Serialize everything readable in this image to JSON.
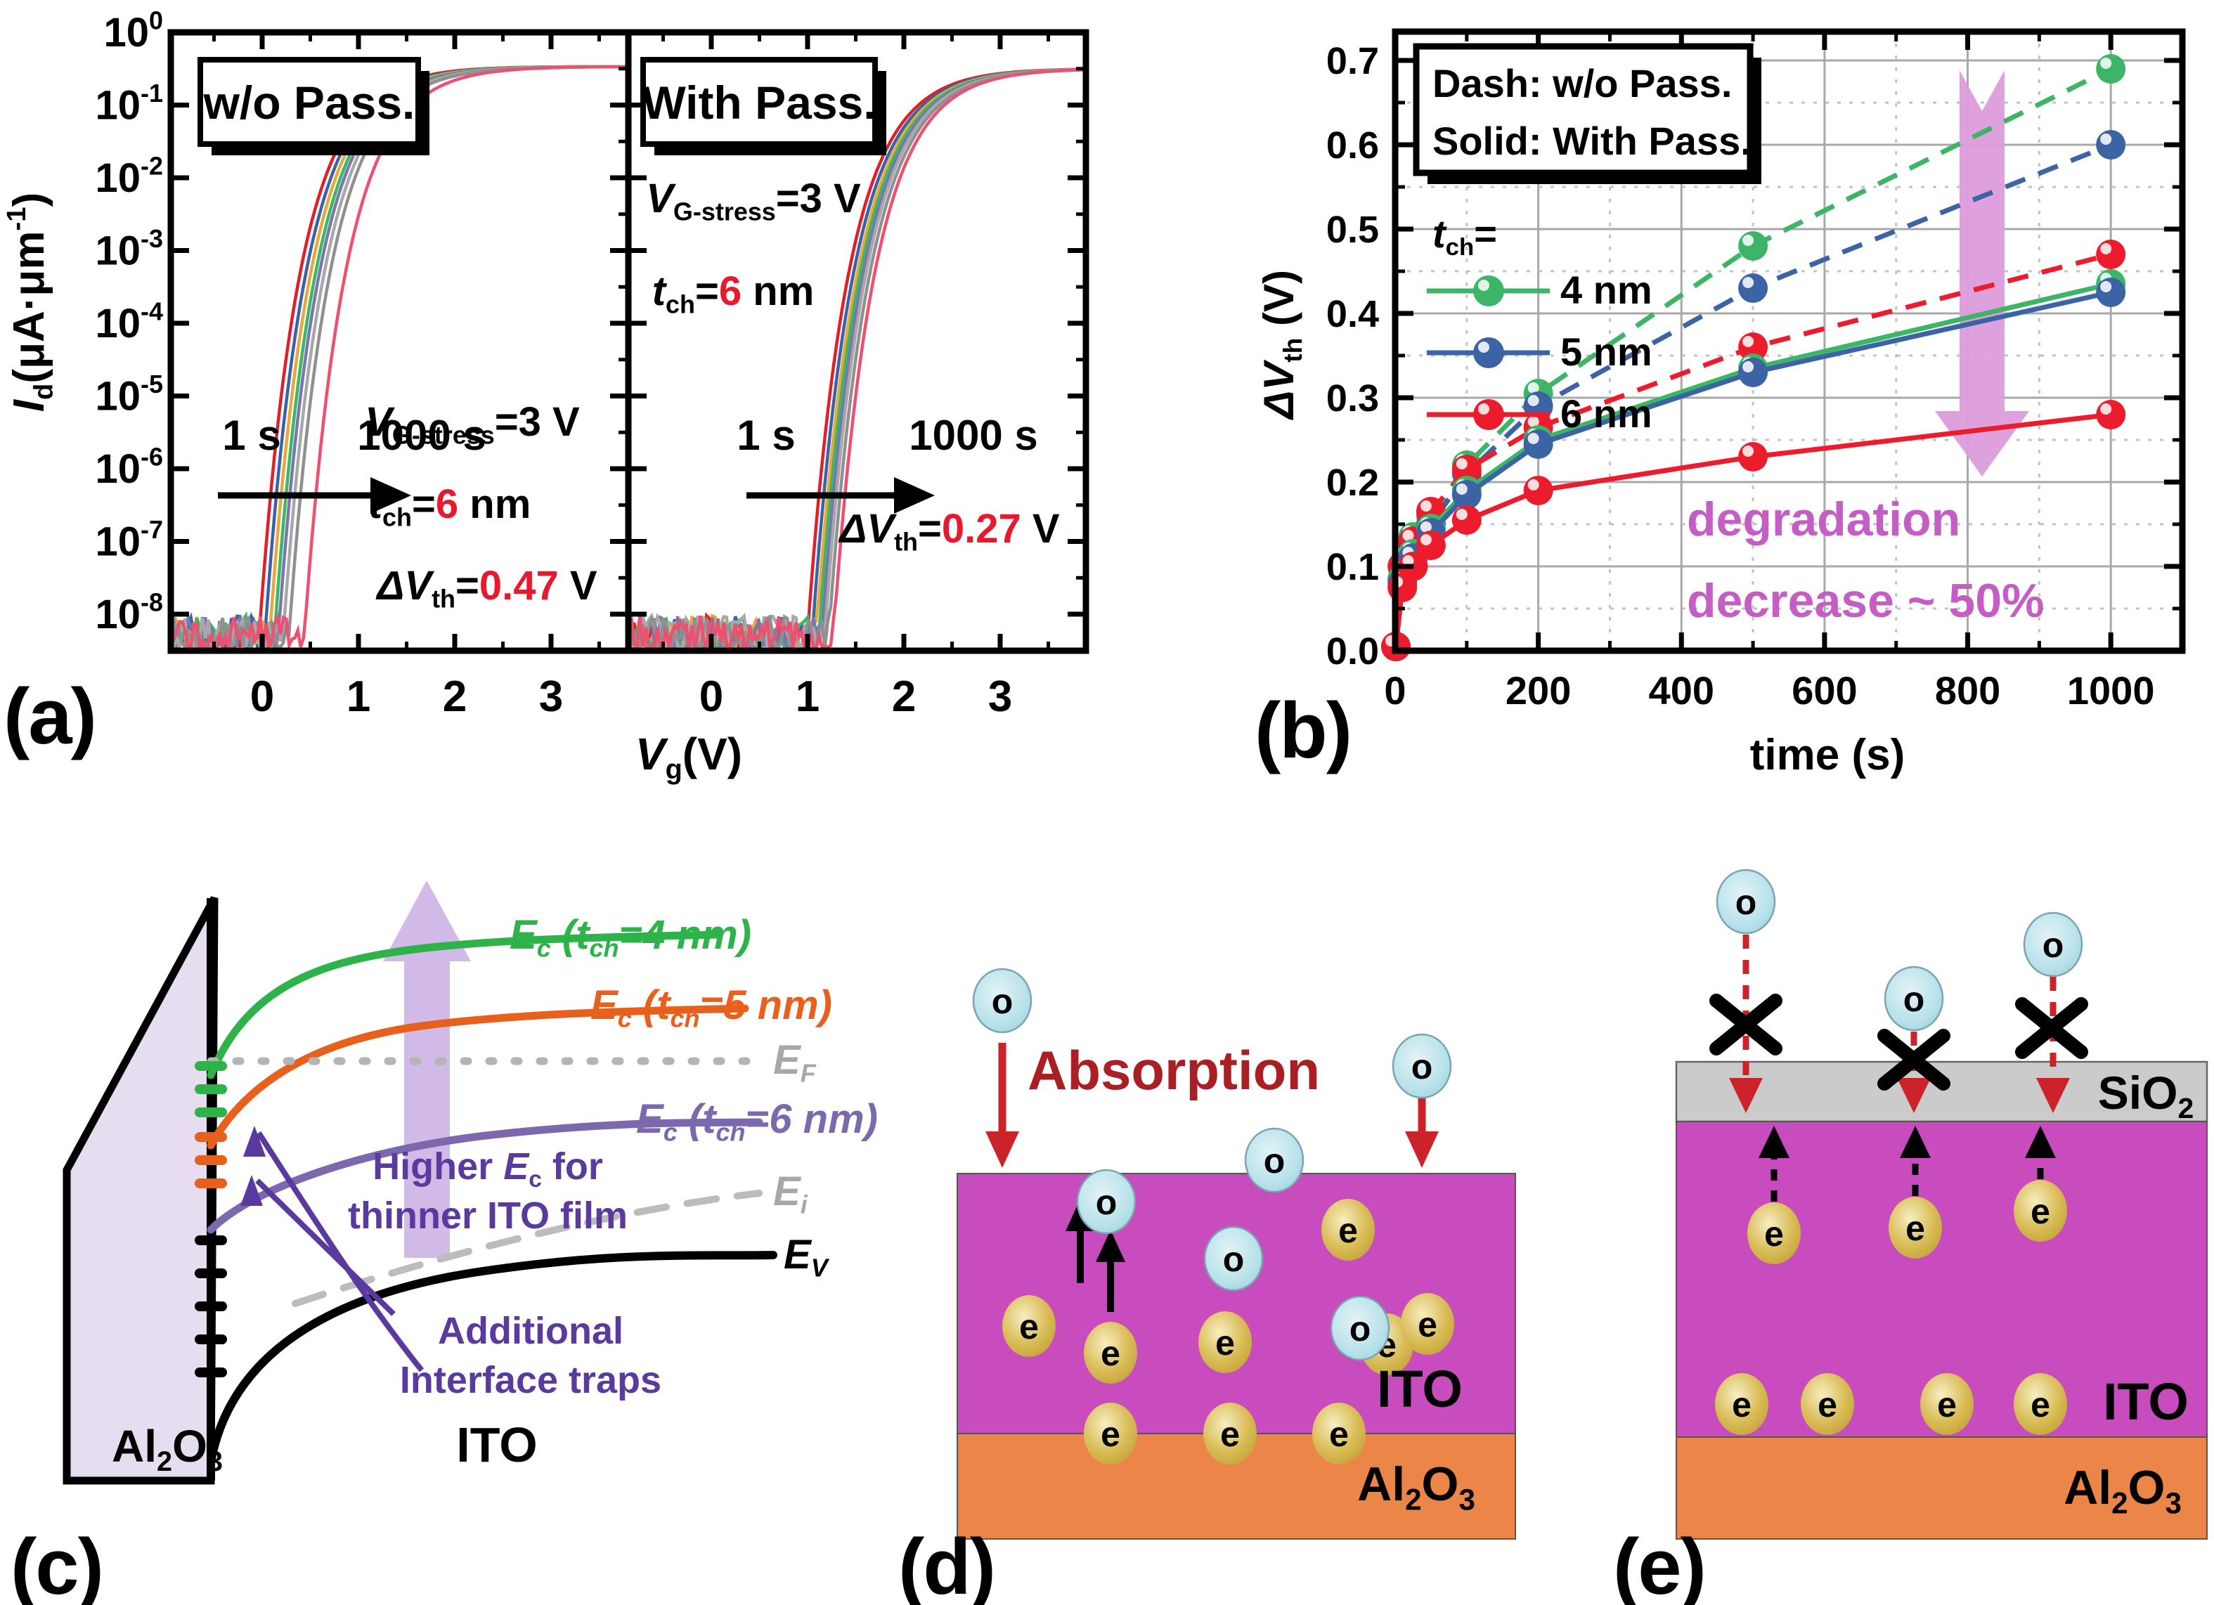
{
  "panel_letters": {
    "a": "(a)",
    "b": "(b)",
    "c": "(c)",
    "d": "(d)",
    "e": "(e)"
  },
  "accent_red": "#e8192c",
  "chart_data": [
    {
      "id": "a_left",
      "type": "line",
      "title": "w/o Pass.",
      "xlabel": "Vg (V)",
      "ylabel": "Id (uA*um^-1)",
      "x_ticks": [
        0,
        1,
        2,
        3
      ],
      "y_tick_exponents": [
        0,
        -1,
        -2,
        -3,
        -4,
        -5,
        -6,
        -7,
        -8
      ],
      "xlim": [
        -0.95,
        3.8
      ],
      "ylog_top": -0.47,
      "ylog_floor": -8.45,
      "stress_times_shown": [
        "1 s",
        "1000 s"
      ],
      "vth_per_sweep_V": [
        -0.04,
        0.02,
        0.07,
        0.12,
        0.16,
        0.21,
        0.27,
        0.43
      ],
      "delta_vth_V": 0.47
    },
    {
      "id": "a_right",
      "type": "line",
      "title": "With Pass.",
      "xlabel": "Vg (V)",
      "x_ticks": [
        0,
        1,
        2,
        3
      ],
      "xlim": [
        -0.86,
        3.89
      ],
      "ylog_top": -0.5,
      "ylog_floor": -8.45,
      "stress_times_shown": [
        "1 s",
        "1000 s"
      ],
      "vth_per_sweep_V": [
        0.99,
        1.04,
        1.08,
        1.11,
        1.14,
        1.17,
        1.21,
        1.26
      ],
      "delta_vth_V": 0.27
    },
    {
      "id": "b",
      "type": "line",
      "xlabel": "time (s)",
      "ylabel": "dVth (V)",
      "xlim": [
        0,
        1100
      ],
      "ylim": [
        0,
        0.73
      ],
      "x_ticks": [
        0,
        200,
        400,
        600,
        800,
        1000
      ],
      "y_ticks": [
        0.0,
        0.1,
        0.2,
        0.3,
        0.4,
        0.5,
        0.6,
        0.7
      ],
      "grid": true,
      "x": [
        1,
        10,
        25,
        50,
        100,
        200,
        500,
        1000
      ],
      "series": [
        {
          "name": "4 nm w/o Pass.",
          "style": "dash",
          "color": "#3cb567",
          "values": [
            0.005,
            0.1,
            0.135,
            0.16,
            0.22,
            0.305,
            0.48,
            0.69
          ]
        },
        {
          "name": "5 nm w/o Pass.",
          "style": "dash",
          "color": "#3c64a5",
          "values": [
            0.005,
            0.085,
            0.125,
            0.15,
            0.21,
            0.29,
            0.43,
            0.6
          ]
        },
        {
          "name": "6 nm w/o Pass.",
          "style": "dash",
          "color": "#ec1c2d",
          "values": [
            0.005,
            0.1,
            0.13,
            0.165,
            0.215,
            0.265,
            0.36,
            0.47
          ]
        },
        {
          "name": "4 nm With Pass.",
          "style": "solid",
          "color": "#3cb567",
          "values": [
            0.005,
            0.085,
            0.115,
            0.145,
            0.19,
            0.25,
            0.335,
            0.435
          ]
        },
        {
          "name": "5 nm With Pass.",
          "style": "solid",
          "color": "#3c64a5",
          "values": [
            0.005,
            0.08,
            0.11,
            0.14,
            0.185,
            0.245,
            0.33,
            0.425
          ]
        },
        {
          "name": "6 nm With Pass.",
          "style": "solid",
          "color": "#ec1c2d",
          "values": [
            0.005,
            0.075,
            0.1,
            0.125,
            0.155,
            0.19,
            0.23,
            0.28
          ]
        }
      ]
    }
  ],
  "panel_a": {
    "ylabel_rich": [
      {
        "t": "I",
        "i": 1
      },
      {
        "t": "d",
        "sub": 1
      },
      {
        "t": "(μA·μm"
      },
      {
        "t": "-1",
        "sup": 1
      },
      {
        "t": ")"
      }
    ],
    "xlabel_rich": [
      {
        "t": "V",
        "i": 1
      },
      {
        "t": "g",
        "sub": 1
      },
      {
        "t": "(V)"
      }
    ],
    "time_start": "1 s",
    "time_end": "1000 s",
    "sweep_colors": [
      "#e02028",
      "#3a62a8",
      "#e8a83c",
      "#3cb860",
      "#7878b0",
      "#a8a8a8",
      "#909090",
      "#ef5070"
    ],
    "left": {
      "box_label": "w/o Pass.",
      "ann1": [
        {
          "t": "V",
          "i": 1
        },
        {
          "t": "G-stress",
          "sub": 1
        },
        {
          "t": "=3 V"
        }
      ],
      "ann2": [
        {
          "t": "t",
          "i": 1
        },
        {
          "t": "ch",
          "sub": 1
        },
        {
          "t": "="
        },
        {
          "t": "6",
          "c": "#e8192c"
        },
        {
          "t": " nm"
        }
      ],
      "ann3": [
        {
          "t": "ΔV",
          "i": 1
        },
        {
          "t": "th",
          "sub": 1
        },
        {
          "t": "="
        },
        {
          "t": "0.47",
          "c": "#e8192c"
        },
        {
          "t": " V"
        }
      ]
    },
    "right": {
      "box_label": "With Pass.",
      "ann1": [
        {
          "t": "V",
          "i": 1
        },
        {
          "t": "G-stress",
          "sub": 1
        },
        {
          "t": "=3 V"
        }
      ],
      "ann2": [
        {
          "t": "t",
          "i": 1
        },
        {
          "t": "ch",
          "sub": 1
        },
        {
          "t": "="
        },
        {
          "t": "6",
          "c": "#e8192c"
        },
        {
          "t": " nm"
        }
      ],
      "ann3": [
        {
          "t": "ΔV",
          "i": 1
        },
        {
          "t": "th",
          "sub": 1
        },
        {
          "t": "="
        },
        {
          "t": "0.27",
          "c": "#e8192c"
        },
        {
          "t": " V"
        }
      ]
    }
  },
  "panel_b": {
    "legend_box_lines": [
      "Dash: w/o Pass.",
      "Solid: With Pass."
    ],
    "tch_rich": [
      {
        "t": "t",
        "i": 1
      },
      {
        "t": "ch",
        "sub": 1
      },
      {
        "t": "="
      }
    ],
    "legend_entries": [
      {
        "label": "4 nm",
        "color": "#3cb567"
      },
      {
        "label": "5 nm",
        "color": "#3c64a5"
      },
      {
        "label": "6 nm",
        "color": "#ec1c2d"
      }
    ],
    "ylabel_rich": [
      {
        "t": "ΔV",
        "i": 1
      },
      {
        "t": "th",
        "sub": 1
      },
      {
        "t": " (V)"
      }
    ],
    "xlabel": "time (s)",
    "annotation_lines": [
      "degradation",
      "decrease ~ 50%"
    ],
    "annotation_color": "#c45ec4",
    "arrow_color": "#dc9cdc"
  },
  "panel_c": {
    "ec4_rich": [
      {
        "t": "E",
        "i": 1
      },
      {
        "t": "c",
        "sub": 1,
        "i": 1
      },
      {
        "t": " (",
        "i": 1
      },
      {
        "t": "t",
        "i": 1
      },
      {
        "t": "ch",
        "sub": 1,
        "i": 1
      },
      {
        "t": "=4 nm)",
        "i": 1
      }
    ],
    "ec5_rich": [
      {
        "t": "E",
        "i": 1
      },
      {
        "t": "c",
        "sub": 1,
        "i": 1
      },
      {
        "t": " (",
        "i": 1
      },
      {
        "t": "t",
        "i": 1
      },
      {
        "t": "ch",
        "sub": 1,
        "i": 1
      },
      {
        "t": "=5 nm)",
        "i": 1
      }
    ],
    "ec6_rich": [
      {
        "t": "E",
        "i": 1
      },
      {
        "t": "c",
        "sub": 1,
        "i": 1
      },
      {
        "t": " (",
        "i": 1
      },
      {
        "t": "t",
        "i": 1
      },
      {
        "t": "ch",
        "sub": 1,
        "i": 1
      },
      {
        "t": "=6 nm)",
        "i": 1
      }
    ],
    "ef_rich": [
      {
        "t": "E",
        "i": 1
      },
      {
        "t": "F",
        "sub": 1,
        "i": 1
      }
    ],
    "ei_rich": [
      {
        "t": "E",
        "i": 1
      },
      {
        "t": "i",
        "sub": 1,
        "i": 1
      }
    ],
    "ev_rich": [
      {
        "t": "E",
        "i": 1
      },
      {
        "t": "V",
        "sub": 1,
        "i": 1
      }
    ],
    "higher_line1": [
      {
        "t": "Higher "
      },
      {
        "t": "E",
        "i": 1
      },
      {
        "t": "c",
        "sub": 1
      },
      {
        "t": " for"
      }
    ],
    "higher_line2": "thinner ITO film",
    "additional": "Additional",
    "traps": "Interface traps",
    "al2o3_rich": [
      {
        "t": "Al"
      },
      {
        "t": "2",
        "sub": 1
      },
      {
        "t": "O"
      },
      {
        "t": "3",
        "sub": 1
      }
    ],
    "ito_label": "ITO",
    "colors": {
      "ec4": "#2db34a",
      "ec5": "#e8601c",
      "ec6": "#7b68ae",
      "ef": "#b4b4b4",
      "ei": "#bcbcbc",
      "ev": "#000000",
      "purple_text": "#5a3a9e",
      "lavender": "#e6def0",
      "arrow": "#c9ade4"
    }
  },
  "panel_d": {
    "absorption_label": "Absorption",
    "absorption_color": "#aa1f23",
    "oxygen_symbol": "o",
    "electron_symbol": "e",
    "ito_label": "ITO",
    "al2o3_rich": [
      {
        "t": "Al"
      },
      {
        "t": "2",
        "sub": 1
      },
      {
        "t": "O"
      },
      {
        "t": "3",
        "sub": 1
      }
    ],
    "ito_color": "#c94cbe",
    "al2o3_color": "#ec8648",
    "o_particles": [
      [
        96,
        274
      ],
      [
        693,
        367
      ],
      [
        483,
        501
      ],
      [
        244,
        560
      ],
      [
        425,
        641
      ],
      [
        605,
        740
      ]
    ],
    "red_arrows": [
      [
        96,
        334,
        512
      ],
      [
        693,
        408,
        512
      ]
    ],
    "black_arrows": [
      [
        207,
        676,
        556
      ],
      [
        250,
        717,
        600
      ]
    ],
    "e_particles": [
      [
        134,
        737
      ],
      [
        250,
        775
      ],
      [
        413,
        760
      ],
      [
        588,
        600
      ],
      [
        643,
        763
      ],
      [
        701,
        734
      ],
      [
        250,
        890
      ],
      [
        420,
        890
      ],
      [
        575,
        890
      ]
    ]
  },
  "panel_e": {
    "sio2_rich": [
      {
        "t": "SiO"
      },
      {
        "t": "2",
        "sub": 1
      }
    ],
    "oxygen_symbol": "o",
    "electron_symbol": "e",
    "ito_label": "ITO",
    "al2o3_rich": [
      {
        "t": "Al"
      },
      {
        "t": "2",
        "sub": 1
      },
      {
        "t": "O"
      },
      {
        "t": "3",
        "sub": 1
      }
    ],
    "sio2_color": "#cbcbcb",
    "ito_color": "#c94cbe",
    "al2o3_color": "#ec8648",
    "o_particles": [
      [
        154,
        133
      ],
      [
        393,
        271
      ],
      [
        591,
        194
      ]
    ],
    "x_marks": [
      [
        154,
        308
      ],
      [
        393,
        358
      ],
      [
        589,
        313
      ]
    ],
    "red_dashed_arrows": [
      [
        154,
        180,
        388
      ],
      [
        393,
        318,
        388
      ],
      [
        591,
        240,
        388
      ]
    ],
    "black_dashed_arrows": [
      [
        194,
        560,
        496
      ],
      [
        395,
        552,
        496
      ],
      [
        573,
        528,
        496
      ]
    ],
    "e_upper": [
      [
        194,
        605
      ],
      [
        395,
        597
      ],
      [
        573,
        573
      ]
    ],
    "e_bottom": [
      [
        148,
        848
      ],
      [
        270,
        848
      ],
      [
        440,
        848
      ],
      [
        573,
        848
      ]
    ]
  }
}
